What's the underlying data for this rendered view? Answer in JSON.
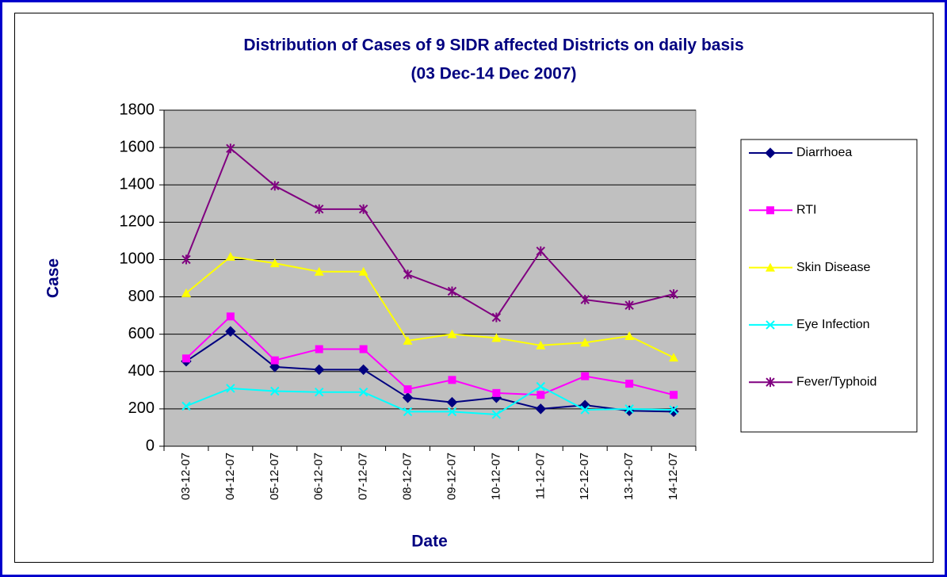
{
  "chart_data": {
    "type": "line",
    "title": "Distribution of Cases of 9 SIDR affected Districts on daily basis",
    "subtitle": "(03 Dec-14 Dec 2007)",
    "x_label": "Date",
    "y_label": "Case",
    "categories": [
      "03-12-07",
      "04-12-07",
      "05-12-07",
      "06-12-07",
      "07-12-07",
      "08-12-07",
      "09-12-07",
      "10-12-07",
      "11-12-07",
      "12-12-07",
      "13-12-07",
      "14-12-07"
    ],
    "series": [
      {
        "name": "Diarrhoea",
        "color": "#000080",
        "marker": "diamond",
        "values": [
          455,
          615,
          425,
          410,
          410,
          260,
          235,
          260,
          200,
          220,
          190,
          185
        ]
      },
      {
        "name": "RTI",
        "color": "#ff00ff",
        "marker": "square",
        "values": [
          470,
          695,
          460,
          520,
          520,
          305,
          355,
          285,
          275,
          375,
          335,
          275
        ]
      },
      {
        "name": "Skin Disease",
        "color": "#ffff00",
        "marker": "triangle",
        "values": [
          820,
          1015,
          980,
          935,
          935,
          565,
          600,
          580,
          540,
          555,
          590,
          475
        ]
      },
      {
        "name": "Eye Infection",
        "color": "#00ffff",
        "marker": "x",
        "values": [
          215,
          310,
          295,
          290,
          290,
          185,
          185,
          170,
          320,
          195,
          200,
          195
        ]
      },
      {
        "name": "Fever/Typhoid",
        "color": "#800080",
        "marker": "star",
        "values": [
          1000,
          1595,
          1395,
          1270,
          1270,
          920,
          830,
          690,
          1045,
          785,
          755,
          815
        ]
      }
    ],
    "ylim": [
      0,
      1800
    ],
    "yticks": [
      0,
      200,
      400,
      600,
      800,
      1000,
      1200,
      1400,
      1600,
      1800
    ],
    "grid": true,
    "legend": "right",
    "plot_background": "#c0c0c0"
  }
}
